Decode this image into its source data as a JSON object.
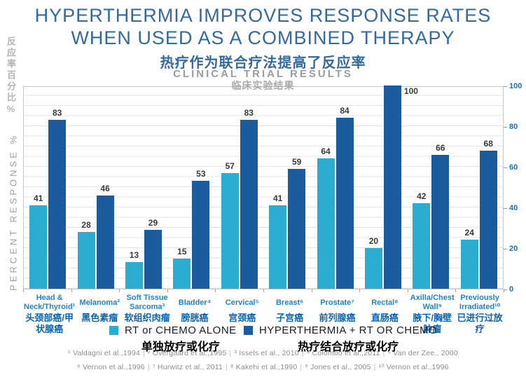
{
  "header": {
    "title_line1": "HYPERTHERMIA IMPROVES RESPONSE RATES",
    "title_line2": "WHEN USED AS A COMBINED THERAPY",
    "subtitle_zh": "热疗作为联合疗法提高了反应率",
    "subheading": "CLINICAL TRIAL RESULTS",
    "subheading_zh": "临床实验结果"
  },
  "y_axis": {
    "label": "PERCENT RESPONSE %",
    "label_zh": "反应率百分比%",
    "ticks": [
      0,
      20,
      40,
      60,
      80,
      100
    ]
  },
  "chart_data": {
    "type": "bar",
    "title": "HYPERTHERMIA IMPROVES RESPONSE RATES WHEN USED AS A COMBINED THERAPY",
    "title_zh": "热疗作为联合疗法提高了反应率",
    "subtitle": "CLINICAL TRIAL RESULTS",
    "subtitle_zh": "临床实验结果",
    "ylabel": "PERCENT RESPONSE %",
    "ylabel_zh": "反应率百分比%",
    "ylim": [
      0,
      100
    ],
    "yticks": [
      0,
      20,
      40,
      60,
      80,
      100
    ],
    "gridline_step": 5,
    "grid": true,
    "legend_position": "bottom",
    "categories": [
      "Head & Neck/Thyroid¹",
      "Melanoma²",
      "Soft Tissue Sarcoma³",
      "Bladder⁴",
      "Cervical⁵",
      "Breast⁶",
      "Prostate⁷",
      "Rectal⁸",
      "Axilla/Chest Wall⁹",
      "Previously Irradiated¹⁰"
    ],
    "categories_zh": [
      "头颈部癌/甲状腺癌",
      "黑色素瘤",
      "软组织肉瘤",
      "膀胱癌",
      "宫颈癌",
      "子宫癌",
      "前列腺癌",
      "直肠癌",
      "腋下/胸壁肿瘤",
      "已进行过放疗"
    ],
    "series": [
      {
        "name": "RT or CHEMO ALONE",
        "name_zh": "单独放疗或化疗",
        "color": "#2badd2",
        "values": [
          41,
          28,
          13,
          15,
          57,
          41,
          64,
          20,
          42,
          24
        ]
      },
      {
        "name": "HYPERTHERMIA + RT OR CHEMO",
        "name_zh": "热疗结合放疗或化疗",
        "color": "#1b5c9e",
        "values": [
          83,
          46,
          29,
          53,
          83,
          59,
          84,
          100,
          66,
          68
        ]
      }
    ]
  },
  "legend": [
    {
      "label": "RT or CHEMO ALONE",
      "label_zh": "单独放疗或化疗",
      "color": "#2badd2"
    },
    {
      "label": "HYPERTHERMIA + RT OR CHEMO",
      "label_zh": "热疗结合放疗或化疗",
      "color": "#1b5c9e"
    }
  ],
  "footnotes": {
    "line1": [
      "¹ Valdagni et al.,1994",
      "² Overgaard et al.,1995",
      "³ Issels et al., 2010",
      "⁴ Colombo et al.,2011",
      "⁵ Van der Zee., 2000"
    ],
    "line2": [
      "⁶ Vernon et al.,1996",
      "⁷ Hurwitz et al., 2011",
      "⁸ Kakehi et al.,1990",
      "⁹ Jones et al., 2005",
      "¹⁰ Vernon et al.,1996"
    ]
  },
  "colors": {
    "title_blue": "#33699f",
    "category_blue": "#2283c6",
    "category_zh_blue": "#0e63ae",
    "axis_tick_blue": "#1c6fb5",
    "bar_teal": "#2badd2",
    "bar_dark_blue": "#1b5c9e",
    "gridline": "#e3e3e3",
    "footnote_gray": "#8d8d8d"
  }
}
